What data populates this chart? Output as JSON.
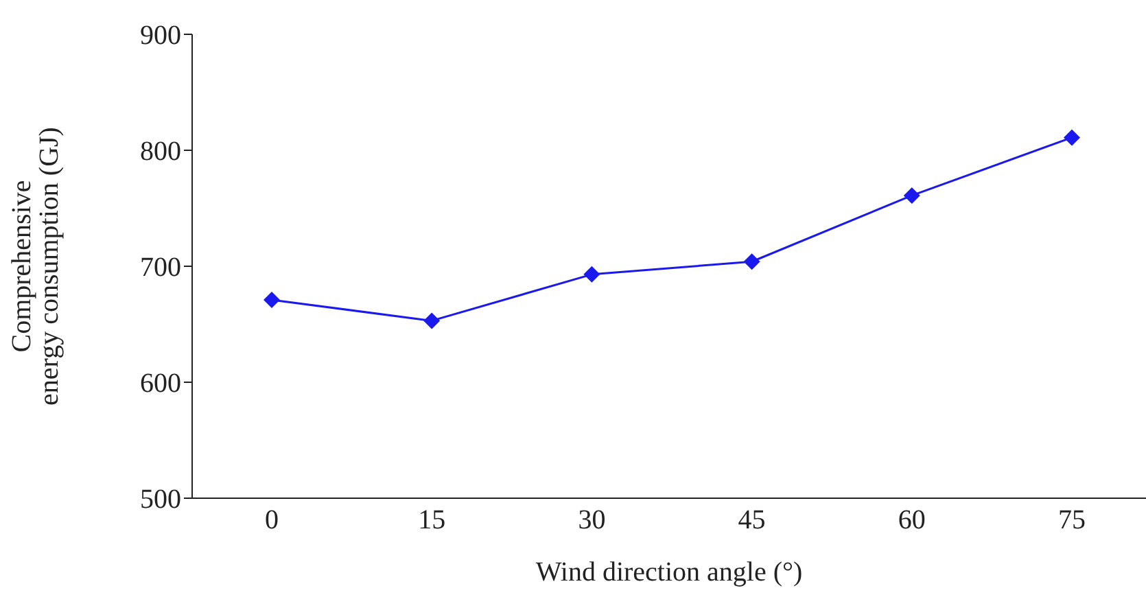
{
  "chart_data": {
    "type": "line",
    "xlabel": "Wind direction angle (°)",
    "ylabel": "Comprehensive energy consumption (GJ)",
    "categories": [
      "0",
      "15",
      "30",
      "45",
      "60",
      "75"
    ],
    "series": [
      {
        "color": "#1a1aee",
        "values": [
          671,
          653,
          693,
          704,
          761,
          811
        ]
      }
    ],
    "ylim": [
      500,
      900
    ],
    "yticks": [
      500,
      600,
      700,
      800,
      900
    ],
    "grid": false,
    "legend": false,
    "marker": "diamond",
    "line_style": "solid"
  }
}
